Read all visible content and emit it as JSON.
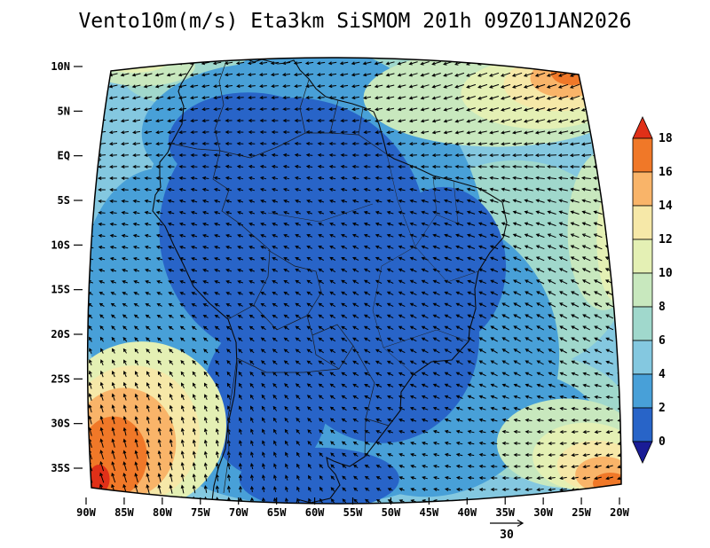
{
  "title": "Vento10m(m/s) Eta3km SiSMOM 201h 09Z01JAN2026",
  "axes": {
    "lat_labels": [
      "10N",
      "5N",
      "EQ",
      "5S",
      "10S",
      "15S",
      "20S",
      "25S",
      "30S",
      "35S"
    ],
    "lat_values": [
      10,
      5,
      0,
      -5,
      -10,
      -15,
      -20,
      -25,
      -30,
      -35
    ],
    "lon_labels": [
      "90W",
      "85W",
      "80W",
      "75W",
      "70W",
      "65W",
      "60W",
      "55W",
      "50W",
      "45W",
      "40W",
      "35W",
      "30W",
      "25W",
      "20W"
    ],
    "lon_values": [
      -90,
      -85,
      -80,
      -75,
      -70,
      -65,
      -60,
      -55,
      -50,
      -45,
      -40,
      -35,
      -30,
      -25,
      -20
    ]
  },
  "colorbar": {
    "tick_labels_top_to_bottom": [
      "18",
      "16",
      "14",
      "12",
      "10",
      "8",
      "6",
      "4",
      "2",
      "0"
    ]
  },
  "reference_vector": {
    "label": "30"
  },
  "chart_data": {
    "type": "heatmap",
    "overlay": "wind-vectors",
    "title": "Vento10m(m/s) Eta3km SiSMOM 201h 09Z01JAN2026",
    "variable": "Vento10m",
    "units": "m/s",
    "model": "Eta3km SiSMOM",
    "forecast_hour": "201h",
    "valid_time": "09Z01JAN2026",
    "reference_vector_ms": 30,
    "colorbar": {
      "levels": [
        0,
        2,
        4,
        6,
        8,
        10,
        12,
        14,
        16,
        18
      ],
      "palette_under": "#1a1c96",
      "palette_bins": [
        "#2864c8",
        "#48a0d8",
        "#84c8e0",
        "#a0d8cc",
        "#c8e8be",
        "#e4f0b4",
        "#f6e8a8",
        "#f9b469",
        "#f07828"
      ],
      "palette_over": "#e03018"
    },
    "background_speed_ms": 5,
    "shaded_regions": [
      {
        "lon": -33.7,
        "lat": -12.4,
        "rlon": 15.1,
        "rlat": 11.9,
        "value": 7
      },
      {
        "lon": -54.7,
        "lat": 8.5,
        "rlon": 30.3,
        "rlat": 5.0,
        "value": 7
      },
      {
        "lon": -31.4,
        "lat": -29.2,
        "rlon": 12.8,
        "rlat": 7.0,
        "value": 7
      },
      {
        "lon": -60.5,
        "lat": -12.4,
        "rlon": 23.3,
        "rlat": 24.8,
        "value": 3
      },
      {
        "lon": -45.4,
        "lat": -22.3,
        "rlon": 17.5,
        "rlat": 15.9,
        "value": 3
      },
      {
        "lon": -66.4,
        "lat": 2.5,
        "rlon": 16.3,
        "rlat": 7.9,
        "value": 3
      },
      {
        "lon": -40.7,
        "lat": -29.2,
        "rlon": 17.5,
        "rlat": 6.0,
        "value": 3
      },
      {
        "lon": -60.5,
        "lat": -34.2,
        "rlon": 17.5,
        "rlat": 5.0,
        "value": 3
      },
      {
        "lon": -80.3,
        "lat": -15.3,
        "rlon": 10.5,
        "rlat": 13.9,
        "value": 3
      },
      {
        "lon": -62.9,
        "lat": -8.4,
        "rlon": 17.5,
        "rlat": 14.9,
        "value": 1
      },
      {
        "lon": -51.2,
        "lat": -20.3,
        "rlon": 12.8,
        "rlat": 11.9,
        "value": 1
      },
      {
        "lon": -68.7,
        "lat": 1.6,
        "rlon": 10.5,
        "rlat": 5.5,
        "value": 1
      },
      {
        "lon": -43.1,
        "lat": -12.4,
        "rlon": 8.2,
        "rlat": 8.9,
        "value": 1
      },
      {
        "lon": -66.4,
        "lat": -27.2,
        "rlon": 8.2,
        "rlat": 8.9,
        "value": 1
      },
      {
        "lon": -59.4,
        "lat": -36.2,
        "rlon": 10.5,
        "rlat": 3.5,
        "value": 1
      },
      {
        "lon": -36.1,
        "lat": 6.5,
        "rlon": 17.5,
        "rlat": 5.5,
        "value": 9
      },
      {
        "lon": -22.1,
        "lat": -8.4,
        "rlon": 4.7,
        "rlat": 8.9,
        "value": 9
      },
      {
        "lon": -26.8,
        "lat": -32.2,
        "rlon": 9.3,
        "rlat": 5.0,
        "value": 9
      },
      {
        "lon": -82.7,
        "lat": 10.0,
        "rlon": 7.0,
        "rlat": 2.2,
        "value": 9
      },
      {
        "lon": -30.3,
        "lat": 7.0,
        "rlon": 10.5,
        "rlat": 4.0,
        "value": 11
      },
      {
        "lon": -20.4,
        "lat": -9.4,
        "rlon": 2.6,
        "rlat": 7.0,
        "value": 11
      },
      {
        "lon": -82.7,
        "lat": -30.2,
        "rlon": 11.1,
        "rlat": 9.4,
        "value": 11
      },
      {
        "lon": -24.4,
        "lat": -33.7,
        "rlon": 7.0,
        "rlat": 3.8,
        "value": 11
      },
      {
        "lon": -83.8,
        "lat": 10.7,
        "rlon": 4.7,
        "rlat": 1.4,
        "value": 11
      },
      {
        "lon": -28.2,
        "lat": 8.0,
        "rlon": 7.0,
        "rlat": 3.0,
        "value": 13
      },
      {
        "lon": -83.8,
        "lat": -31.2,
        "rlon": 8.7,
        "rlat": 7.7,
        "value": 13
      },
      {
        "lon": -23.0,
        "lat": -34.7,
        "rlon": 5.2,
        "rlat": 2.8,
        "value": 13
      },
      {
        "lon": -27.0,
        "lat": 8.7,
        "rlon": 4.7,
        "rlat": 2.2,
        "value": 15
      },
      {
        "lon": -85.0,
        "lat": -32.2,
        "rlon": 6.8,
        "rlat": 6.2,
        "value": 15
      },
      {
        "lon": -22.1,
        "lat": -35.7,
        "rlon": 3.7,
        "rlat": 2.0,
        "value": 15
      },
      {
        "lon": -26.2,
        "lat": 9.3,
        "rlon": 2.8,
        "rlat": 1.4,
        "value": 17
      },
      {
        "lon": -86.4,
        "lat": -33.7,
        "rlon": 4.4,
        "rlat": 4.5,
        "value": 17
      },
      {
        "lon": -21.2,
        "lat": -36.7,
        "rlon": 2.3,
        "rlat": 1.2,
        "value": 17
      },
      {
        "lon": -88.3,
        "lat": -36.2,
        "rlon": 1.4,
        "rlat": 1.6,
        "value": 19
      }
    ],
    "wind_grid": {
      "cols": 8,
      "rows": 7,
      "u": [
        [
          -7,
          -7,
          -6,
          -6,
          -7,
          -8,
          -8,
          -7
        ],
        [
          -6,
          -5,
          -4,
          -4,
          -5,
          -7,
          -8,
          -8
        ],
        [
          -5,
          -4,
          -3,
          -3,
          -4,
          -6,
          -7,
          -7
        ],
        [
          -3,
          -3,
          -3,
          -3,
          -4,
          -5,
          -6,
          -6
        ],
        [
          -1,
          -2,
          -2,
          -3,
          -4,
          -5,
          -5,
          -5
        ],
        [
          -2,
          -1,
          -1,
          -2,
          -3,
          -4,
          -4,
          -4
        ],
        [
          -4,
          -2,
          0,
          -1,
          -2,
          -3,
          -5,
          -6
        ]
      ],
      "v": [
        [
          -2,
          -2,
          -1,
          -1,
          -2,
          -3,
          -3,
          -4
        ],
        [
          -1,
          -1,
          0,
          0,
          -1,
          -2,
          -2,
          -3
        ],
        [
          0,
          1,
          1,
          1,
          1,
          2,
          2,
          2
        ],
        [
          1,
          1,
          1,
          2,
          2,
          2,
          3,
          3
        ],
        [
          3,
          2,
          2,
          2,
          2,
          3,
          3,
          2
        ],
        [
          7,
          5,
          3,
          2,
          1,
          1,
          0,
          -1
        ],
        [
          10,
          8,
          4,
          2,
          1,
          0,
          -1,
          -2
        ]
      ]
    }
  }
}
